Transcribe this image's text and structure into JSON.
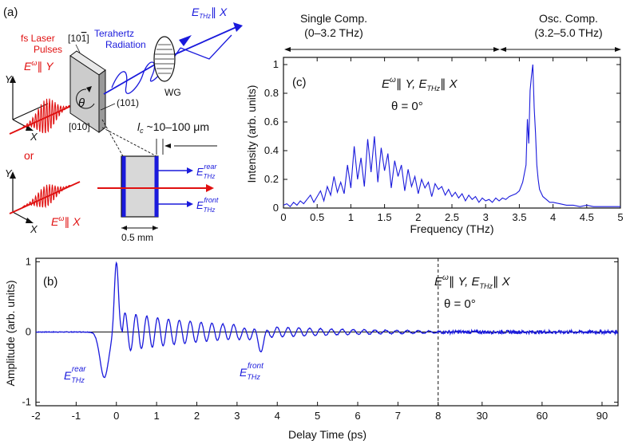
{
  "panel_labels": {
    "a": "(a)",
    "b": "(b)",
    "c": "(c)"
  },
  "colors": {
    "trace": "#1a1adc",
    "laser": "#e01010",
    "axis": "#111111",
    "crystal": "#c8c8c8"
  },
  "diagram": {
    "laser_label_line1": "fs Laser",
    "laser_label_line2": "Pulses",
    "laser_pol_top": "E",
    "laser_pol_top_sup": "ω",
    "laser_pol_top_rel": "∥ Y",
    "or_label": "or",
    "laser_pol_bottom": "E",
    "laser_pol_bottom_sup": "ω",
    "laser_pol_bottom_rel": "∥ X",
    "axis_y": "Y",
    "axis_x": "X",
    "miller_top": "[10",
    "miller_top_bar": "1",
    "miller_top_end": "]",
    "miller_101": "(101)",
    "miller_010": "[010]",
    "theta": "θ",
    "thz_radiation_line1": "Terahertz",
    "thz_radiation_line2": "Radiation",
    "wg_label": "WG",
    "thz_pol_E": "E",
    "thz_pol_sub": "THz",
    "thz_pol_rel": "∥ X",
    "lc_label": "l",
    "lc_sub": "c",
    "lc_value": " ~10–100 μm",
    "rear_label": "E",
    "rear_sub": "THz",
    "rear_sup": "rear",
    "front_label": "E",
    "front_sub": "THz",
    "front_sup": "front",
    "thickness_label": "0.5 mm"
  },
  "panel_c": {
    "region_single_line1": "Single Comp.",
    "region_single_line2": "(0–3.2 THz)",
    "region_osc_line1": "Osc. Comp.",
    "region_osc_line2": "(3.2–5.0 THz)",
    "annot_line1": "E",
    "annot_line1_sup": "ω",
    "annot_line1_rest": "∥ Y, E",
    "annot_line1_sub": "THz",
    "annot_line1_end": "∥ X",
    "annot_line2": "θ = 0°"
  },
  "panel_b": {
    "annot_line1": "E",
    "annot_line1_sup": "ω",
    "annot_line1_rest": "∥ Y, E",
    "annot_line1_sub": "THz",
    "annot_line1_end": "∥ X",
    "annot_line2": "θ = 0°",
    "rear_label": "E",
    "rear_sub": "THz",
    "rear_sup": "rear",
    "front_label": "E",
    "front_sub": "THz",
    "front_sup": "front"
  },
  "chart_data": [
    {
      "type": "line",
      "panel": "c",
      "xlabel": "Frequency (THz)",
      "ylabel": "Intensity (arb. units)",
      "xlim": [
        0,
        5
      ],
      "ylim": [
        0,
        1.05
      ],
      "xticks": [
        "0",
        "0.5",
        "1",
        "1.5",
        "2",
        "2.5",
        "3",
        "3.5",
        "4",
        "4.5",
        "5"
      ],
      "xtick_values": [
        0,
        0.5,
        1,
        1.5,
        2,
        2.5,
        3,
        3.5,
        4,
        4.5,
        5
      ],
      "yticks": [
        "0",
        "0.2",
        "0.4",
        "0.6",
        "0.8",
        "1"
      ],
      "ytick_values": [
        0,
        0.2,
        0.4,
        0.6,
        0.8,
        1
      ],
      "x": [
        0,
        0.05,
        0.1,
        0.15,
        0.2,
        0.25,
        0.3,
        0.35,
        0.4,
        0.45,
        0.5,
        0.55,
        0.6,
        0.65,
        0.7,
        0.75,
        0.8,
        0.85,
        0.9,
        0.95,
        1.0,
        1.05,
        1.1,
        1.15,
        1.2,
        1.25,
        1.3,
        1.35,
        1.4,
        1.45,
        1.5,
        1.55,
        1.6,
        1.65,
        1.7,
        1.75,
        1.8,
        1.85,
        1.9,
        1.95,
        2.0,
        2.05,
        2.1,
        2.15,
        2.2,
        2.25,
        2.3,
        2.35,
        2.4,
        2.45,
        2.5,
        2.55,
        2.6,
        2.65,
        2.7,
        2.75,
        2.8,
        2.85,
        2.9,
        2.95,
        3.0,
        3.05,
        3.1,
        3.15,
        3.2,
        3.25,
        3.3,
        3.35,
        3.4,
        3.45,
        3.5,
        3.55,
        3.6,
        3.62,
        3.64,
        3.66,
        3.68,
        3.7,
        3.72,
        3.74,
        3.76,
        3.78,
        3.8,
        3.85,
        3.9,
        3.95,
        4.0,
        4.1,
        4.2,
        4.3,
        4.4,
        4.5,
        4.6,
        4.7,
        4.8,
        4.9,
        5.0
      ],
      "y": [
        0.02,
        0.03,
        0.01,
        0.04,
        0.02,
        0.05,
        0.03,
        0.06,
        0.09,
        0.04,
        0.08,
        0.12,
        0.05,
        0.15,
        0.09,
        0.22,
        0.11,
        0.18,
        0.1,
        0.3,
        0.14,
        0.43,
        0.2,
        0.35,
        0.15,
        0.48,
        0.25,
        0.5,
        0.18,
        0.42,
        0.26,
        0.38,
        0.14,
        0.33,
        0.22,
        0.3,
        0.12,
        0.27,
        0.15,
        0.22,
        0.1,
        0.2,
        0.14,
        0.18,
        0.08,
        0.17,
        0.13,
        0.15,
        0.09,
        0.13,
        0.08,
        0.11,
        0.07,
        0.1,
        0.05,
        0.09,
        0.06,
        0.08,
        0.04,
        0.07,
        0.05,
        0.06,
        0.04,
        0.07,
        0.05,
        0.07,
        0.06,
        0.08,
        0.09,
        0.1,
        0.12,
        0.18,
        0.3,
        0.62,
        0.45,
        0.82,
        0.92,
        1.0,
        0.7,
        0.52,
        0.3,
        0.2,
        0.13,
        0.08,
        0.06,
        0.04,
        0.04,
        0.03,
        0.02,
        0.02,
        0.01,
        0.02,
        0.01,
        0.01,
        0.01,
        0.01,
        0.01
      ]
    },
    {
      "type": "line",
      "panel": "b",
      "xlabel": "Delay Time (ps)",
      "ylabel": "Amplitude (arb. units)",
      "ylim": [
        -1.05,
        1.05
      ],
      "xticks": [
        "-2",
        "-1",
        "0",
        "1",
        "2",
        "3",
        "4",
        "5",
        "6",
        "7",
        "8",
        "30",
        "60",
        "90"
      ],
      "xtick_values": [
        -2,
        -1,
        0,
        1,
        2,
        3,
        4,
        5,
        6,
        7,
        8,
        30,
        60,
        90
      ],
      "yticks": [
        "-1",
        "0",
        "1"
      ],
      "ytick_values": [
        -1,
        0,
        1
      ],
      "x_break": 8,
      "x_break_upper": 98,
      "series_early": {
        "oscillation_start_ps": 0.15,
        "period_ps": 0.27,
        "decay_ps": 2.8
      },
      "features": [
        {
          "t": -0.3,
          "v": -0.65
        },
        {
          "t": 0.0,
          "v": 1.0
        },
        {
          "t": 3.1,
          "v": 0.25
        },
        {
          "t": 3.5,
          "v": -0.3
        },
        {
          "t": 4.0,
          "v": 0.2
        }
      ]
    }
  ]
}
